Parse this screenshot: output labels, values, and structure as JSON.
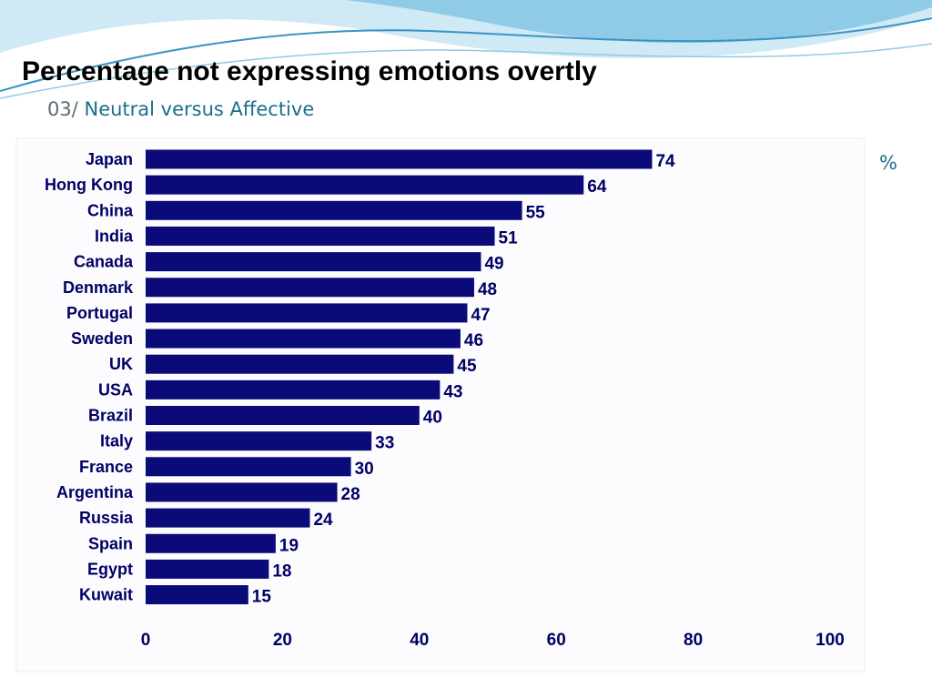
{
  "slide": {
    "title": "Percentage not expressing emotions overtly",
    "subtitle_number": "03/",
    "subtitle_text": "Neutral versus Affective",
    "unit": "%"
  },
  "colors": {
    "bar": "#0a0a78",
    "label": "#000066",
    "accent": "#1a6f8a",
    "wave_light": "#cfe9f5",
    "wave_mid": "#8fcbe6",
    "wave_dark": "#3a93c4"
  },
  "chart_data": {
    "type": "bar",
    "orientation": "horizontal",
    "categories": [
      "Japan",
      "Hong Kong",
      "China",
      "India",
      "Canada",
      "Denmark",
      "Portugal",
      "Sweden",
      "UK",
      "USA",
      "Brazil",
      "Italy",
      "France",
      "Argentina",
      "Russia",
      "Spain",
      "Egypt",
      "Kuwait"
    ],
    "values": [
      74,
      64,
      55,
      51,
      49,
      48,
      47,
      46,
      45,
      43,
      40,
      33,
      30,
      28,
      24,
      19,
      18,
      15
    ],
    "xlim": [
      0,
      100
    ],
    "xticks": [
      0,
      20,
      40,
      60,
      80,
      100
    ],
    "grid": false,
    "legend": "none"
  }
}
